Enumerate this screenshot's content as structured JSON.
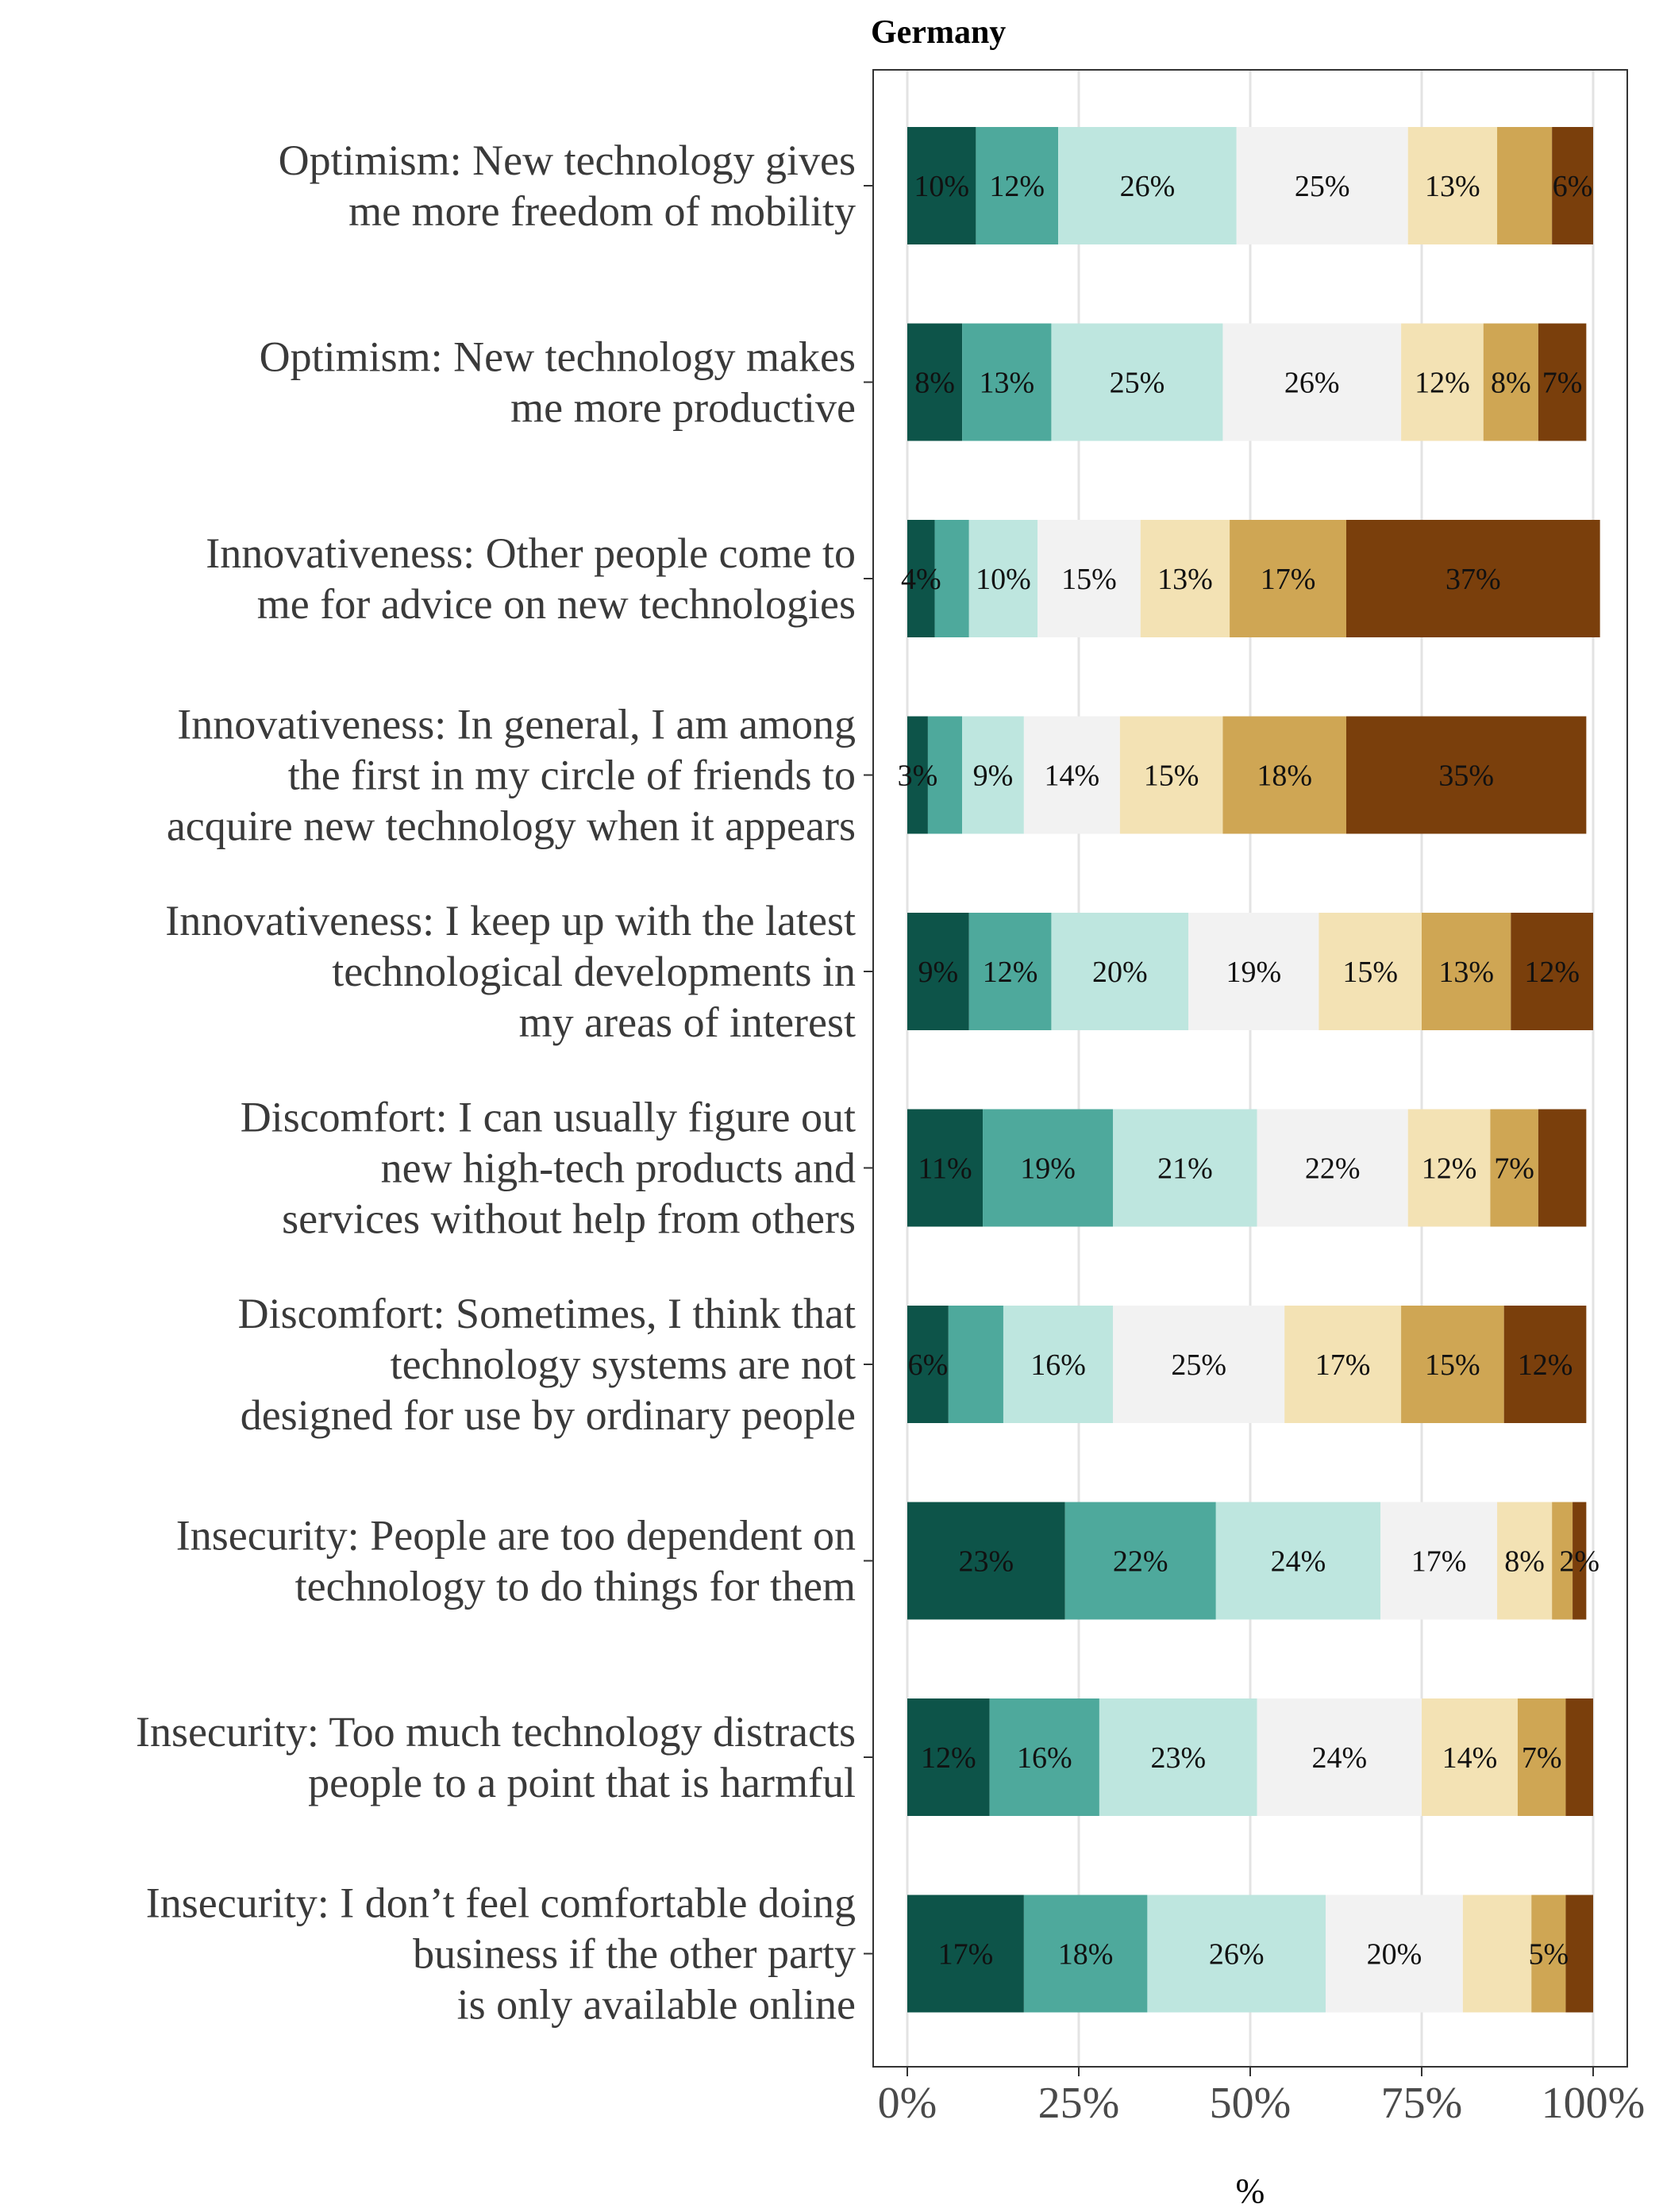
{
  "chart_data": {
    "type": "bar",
    "orientation": "horizontal",
    "stacked": true,
    "title": "Germany",
    "xlabel": "%",
    "ylabel": "",
    "xlim": [
      0,
      100
    ],
    "x_ticks": [
      "0%",
      "25%",
      "50%",
      "75%",
      "100%"
    ],
    "grid": true,
    "legend": "none",
    "colors": [
      "#0d5449",
      "#4ea99c",
      "#bee6df",
      "#f2f2f2",
      "#f3e2b4",
      "#cfa654",
      "#7a3f0c"
    ],
    "categories": [
      [
        "Optimism: New technology gives",
        "me more freedom of mobility"
      ],
      [
        "Optimism: New technology makes",
        "me more productive"
      ],
      [
        "Innovativeness: Other people come to",
        "me for advice on new technologies"
      ],
      [
        "Innovativeness: In general, I am among",
        "the first in my circle of friends to",
        "acquire new technology when it appears"
      ],
      [
        "Innovativeness: I keep up with the latest",
        "technological developments in",
        "my areas of interest"
      ],
      [
        "Discomfort: I can usually figure out",
        "new high-tech products and",
        "services without help from others"
      ],
      [
        "Discomfort: Sometimes, I think that",
        "technology systems are not",
        "designed for use by ordinary people"
      ],
      [
        "Insecurity: People are too dependent on",
        "technology to do things for them"
      ],
      [
        "Insecurity: Too much technology distracts",
        "people to a point that is harmful"
      ],
      [
        "Insecurity: I don’t feel comfortable doing",
        "business if the other party",
        "is only available online"
      ]
    ],
    "values": [
      [
        10,
        12,
        26,
        25,
        13,
        8,
        6
      ],
      [
        8,
        13,
        25,
        26,
        12,
        8,
        7
      ],
      [
        4,
        5,
        10,
        15,
        13,
        17,
        37
      ],
      [
        3,
        5,
        9,
        14,
        15,
        18,
        35
      ],
      [
        9,
        12,
        20,
        19,
        15,
        13,
        12
      ],
      [
        11,
        19,
        21,
        22,
        12,
        7,
        7
      ],
      [
        6,
        8,
        16,
        25,
        17,
        15,
        12
      ],
      [
        23,
        22,
        24,
        17,
        8,
        3,
        2
      ],
      [
        12,
        16,
        23,
        24,
        14,
        7,
        4
      ],
      [
        17,
        18,
        26,
        20,
        10,
        5,
        4
      ]
    ],
    "labels": [
      [
        "10%",
        "12%",
        "26%",
        "25%",
        "13%",
        "",
        "6%"
      ],
      [
        "8%",
        "13%",
        "25%",
        "26%",
        "12%",
        "8%",
        "7%"
      ],
      [
        "4%",
        "",
        "10%",
        "15%",
        "13%",
        "17%",
        "37%"
      ],
      [
        "3%",
        "",
        "9%",
        "14%",
        "15%",
        "18%",
        "35%"
      ],
      [
        "9%",
        "12%",
        "20%",
        "19%",
        "15%",
        "13%",
        "12%"
      ],
      [
        "11%",
        "19%",
        "21%",
        "22%",
        "12%",
        "7%",
        ""
      ],
      [
        "6%",
        "",
        "16%",
        "25%",
        "17%",
        "15%",
        "12%"
      ],
      [
        "23%",
        "22%",
        "24%",
        "17%",
        "8%",
        "",
        "2%"
      ],
      [
        "12%",
        "16%",
        "23%",
        "24%",
        "14%",
        "7%",
        ""
      ],
      [
        "17%",
        "18%",
        "26%",
        "20%",
        "",
        "5%",
        ""
      ]
    ]
  }
}
